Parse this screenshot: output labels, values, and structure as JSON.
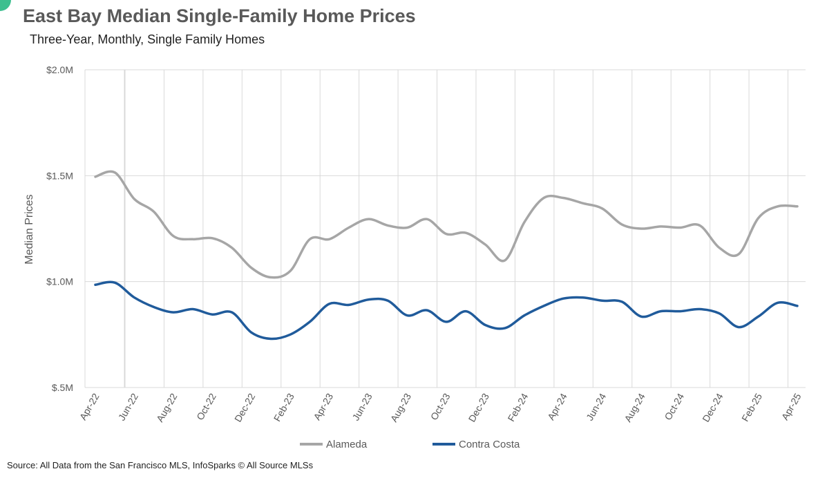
{
  "header": {
    "title": "East Bay Median Single-Family Home Prices",
    "subtitle": "Three-Year, Monthly, Single Family Homes",
    "source": "Source: All Data from the San Francisco MLS, InfoSparks © All Source MLSs"
  },
  "colors": {
    "corner_accent": "#3dbf8f"
  },
  "chart_data": {
    "type": "line",
    "title": "East Bay Median Single-Family Home Prices",
    "subtitle": "Three-Year, Monthly, Single Family Homes",
    "ylabel": "Median Prices",
    "xlabel": "",
    "ylim": [
      0.5,
      2.0
    ],
    "y_unit": "millions USD",
    "y_ticks": [
      {
        "value": 0.5,
        "label": "$.5M"
      },
      {
        "value": 1.0,
        "label": "$1.0M"
      },
      {
        "value": 1.5,
        "label": "$1.5M"
      },
      {
        "value": 2.0,
        "label": "$2.0M"
      }
    ],
    "x": [
      "Apr-22",
      "May-22",
      "Jun-22",
      "Jul-22",
      "Aug-22",
      "Sep-22",
      "Oct-22",
      "Nov-22",
      "Dec-22",
      "Jan-23",
      "Feb-23",
      "Mar-23",
      "Apr-23",
      "May-23",
      "Jun-23",
      "Jul-23",
      "Aug-23",
      "Sep-23",
      "Oct-23",
      "Nov-23",
      "Dec-23",
      "Jan-24",
      "Feb-24",
      "Mar-24",
      "Apr-24",
      "May-24",
      "Jun-24",
      "Jul-24",
      "Aug-24",
      "Sep-24",
      "Oct-24",
      "Nov-24",
      "Dec-24",
      "Jan-25",
      "Feb-25",
      "Mar-25",
      "Apr-25"
    ],
    "x_tick_labels": [
      "Apr-22",
      "Jun-22",
      "Aug-22",
      "Oct-22",
      "Dec-22",
      "Feb-23",
      "Apr-23",
      "Jun-23",
      "Aug-23",
      "Oct-23",
      "Dec-23",
      "Feb-24",
      "Apr-24",
      "Jun-24",
      "Aug-24",
      "Oct-24",
      "Dec-24",
      "Feb-25",
      "Apr-25"
    ],
    "grid": true,
    "legend_position": "bottom",
    "series": [
      {
        "name": "Alameda",
        "color": "#a6a6a6",
        "values": [
          1.495,
          1.515,
          1.39,
          1.33,
          1.215,
          1.2,
          1.205,
          1.16,
          1.065,
          1.02,
          1.05,
          1.2,
          1.2,
          1.255,
          1.295,
          1.265,
          1.255,
          1.295,
          1.225,
          1.23,
          1.175,
          1.1,
          1.28,
          1.395,
          1.395,
          1.37,
          1.345,
          1.27,
          1.25,
          1.26,
          1.255,
          1.265,
          1.16,
          1.13,
          1.3,
          1.355,
          1.355
        ]
      },
      {
        "name": "Contra Costa",
        "color": "#205b9b",
        "values": [
          0.985,
          0.995,
          0.925,
          0.88,
          0.855,
          0.87,
          0.845,
          0.855,
          0.76,
          0.73,
          0.75,
          0.81,
          0.895,
          0.89,
          0.915,
          0.91,
          0.84,
          0.865,
          0.81,
          0.86,
          0.795,
          0.78,
          0.84,
          0.885,
          0.92,
          0.925,
          0.91,
          0.905,
          0.835,
          0.86,
          0.86,
          0.87,
          0.85,
          0.785,
          0.835,
          0.9,
          0.885
        ]
      }
    ]
  }
}
